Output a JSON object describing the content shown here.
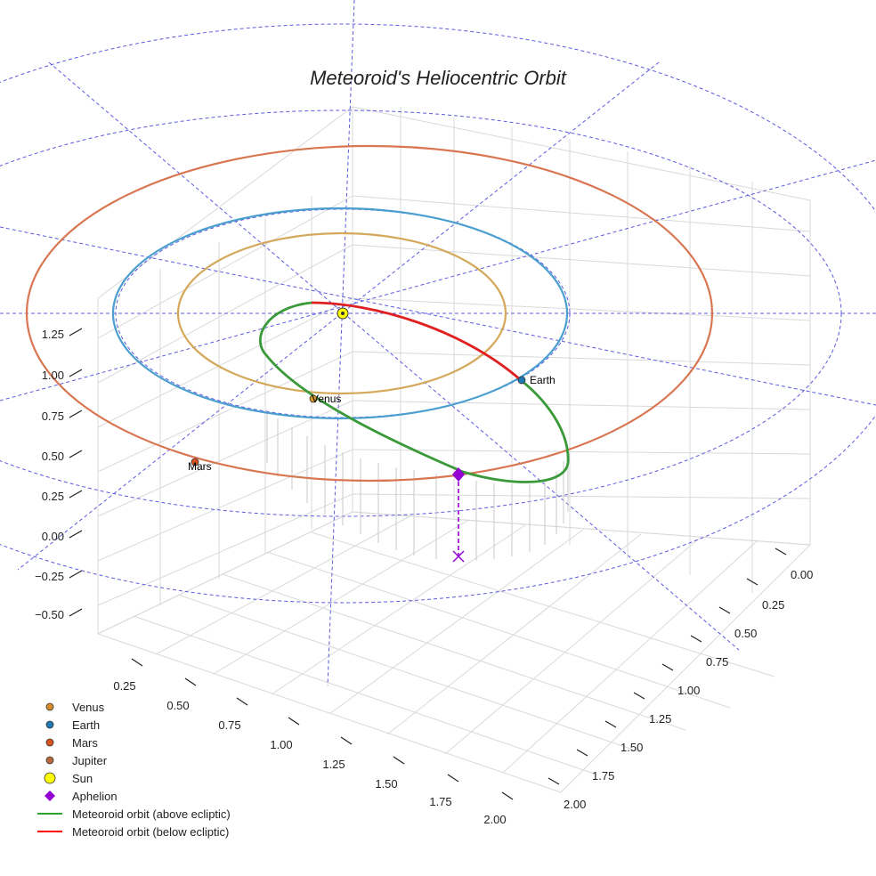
{
  "chart_data": {
    "type": "3d-orbit",
    "title": "Meteoroid's Heliocentric Orbit",
    "z_ticks": [
      "1.25",
      "1.00",
      "0.75",
      "0.50",
      "0.25",
      "0.00",
      "−0.25",
      "−0.50"
    ],
    "x_ticks_right": [
      "0.00",
      "0.25",
      "0.50",
      "0.75",
      "1.00",
      "1.25",
      "1.50",
      "1.75",
      "2.00"
    ],
    "y_ticks_front": [
      "0.25",
      "0.50",
      "0.75",
      "1.00",
      "1.25",
      "1.50",
      "1.75",
      "2.00"
    ],
    "planets": [
      {
        "name": "Venus",
        "orbit_radius_au": 0.72,
        "color": "#d99a26",
        "orbit_color": "#d4a85a",
        "label": "Venus"
      },
      {
        "name": "Earth",
        "orbit_radius_au": 1.0,
        "color": "#1f77b4",
        "orbit_color": "#4a9fcf",
        "label": "Earth"
      },
      {
        "name": "Mars",
        "orbit_radius_au": 1.52,
        "color": "#d9531e",
        "orbit_color": "#d97652",
        "label": "Mars"
      }
    ],
    "sun": {
      "name": "Sun",
      "color": "#ffff00"
    },
    "meteoroid_orbit": {
      "perihelion_au": 0.3,
      "aphelion_au": 1.45
    },
    "legend": [
      {
        "label": "Venus",
        "marker": "circle",
        "color": "#d98b2b"
      },
      {
        "label": "Earth",
        "marker": "circle",
        "color": "#1f77b4"
      },
      {
        "label": "Mars",
        "marker": "circle",
        "color": "#d9531e"
      },
      {
        "label": "Jupiter",
        "marker": "circle",
        "color": "#b8693e"
      },
      {
        "label": "Sun",
        "marker": "circle-large",
        "color": "#ffff00"
      },
      {
        "label": "Aphelion",
        "marker": "diamond",
        "color": "#9400d3"
      },
      {
        "label": "Meteoroid orbit (above ecliptic)",
        "marker": "line",
        "color": "#2ca02c"
      },
      {
        "label": "Meteoroid orbit (below ecliptic)",
        "marker": "line",
        "color": "#ff0000"
      }
    ],
    "colors": {
      "above": "#3a9a3a",
      "below": "#e02020",
      "aphelion": "#9400d3",
      "grid": "#d8d8d8",
      "guides": "#5555dd"
    }
  }
}
